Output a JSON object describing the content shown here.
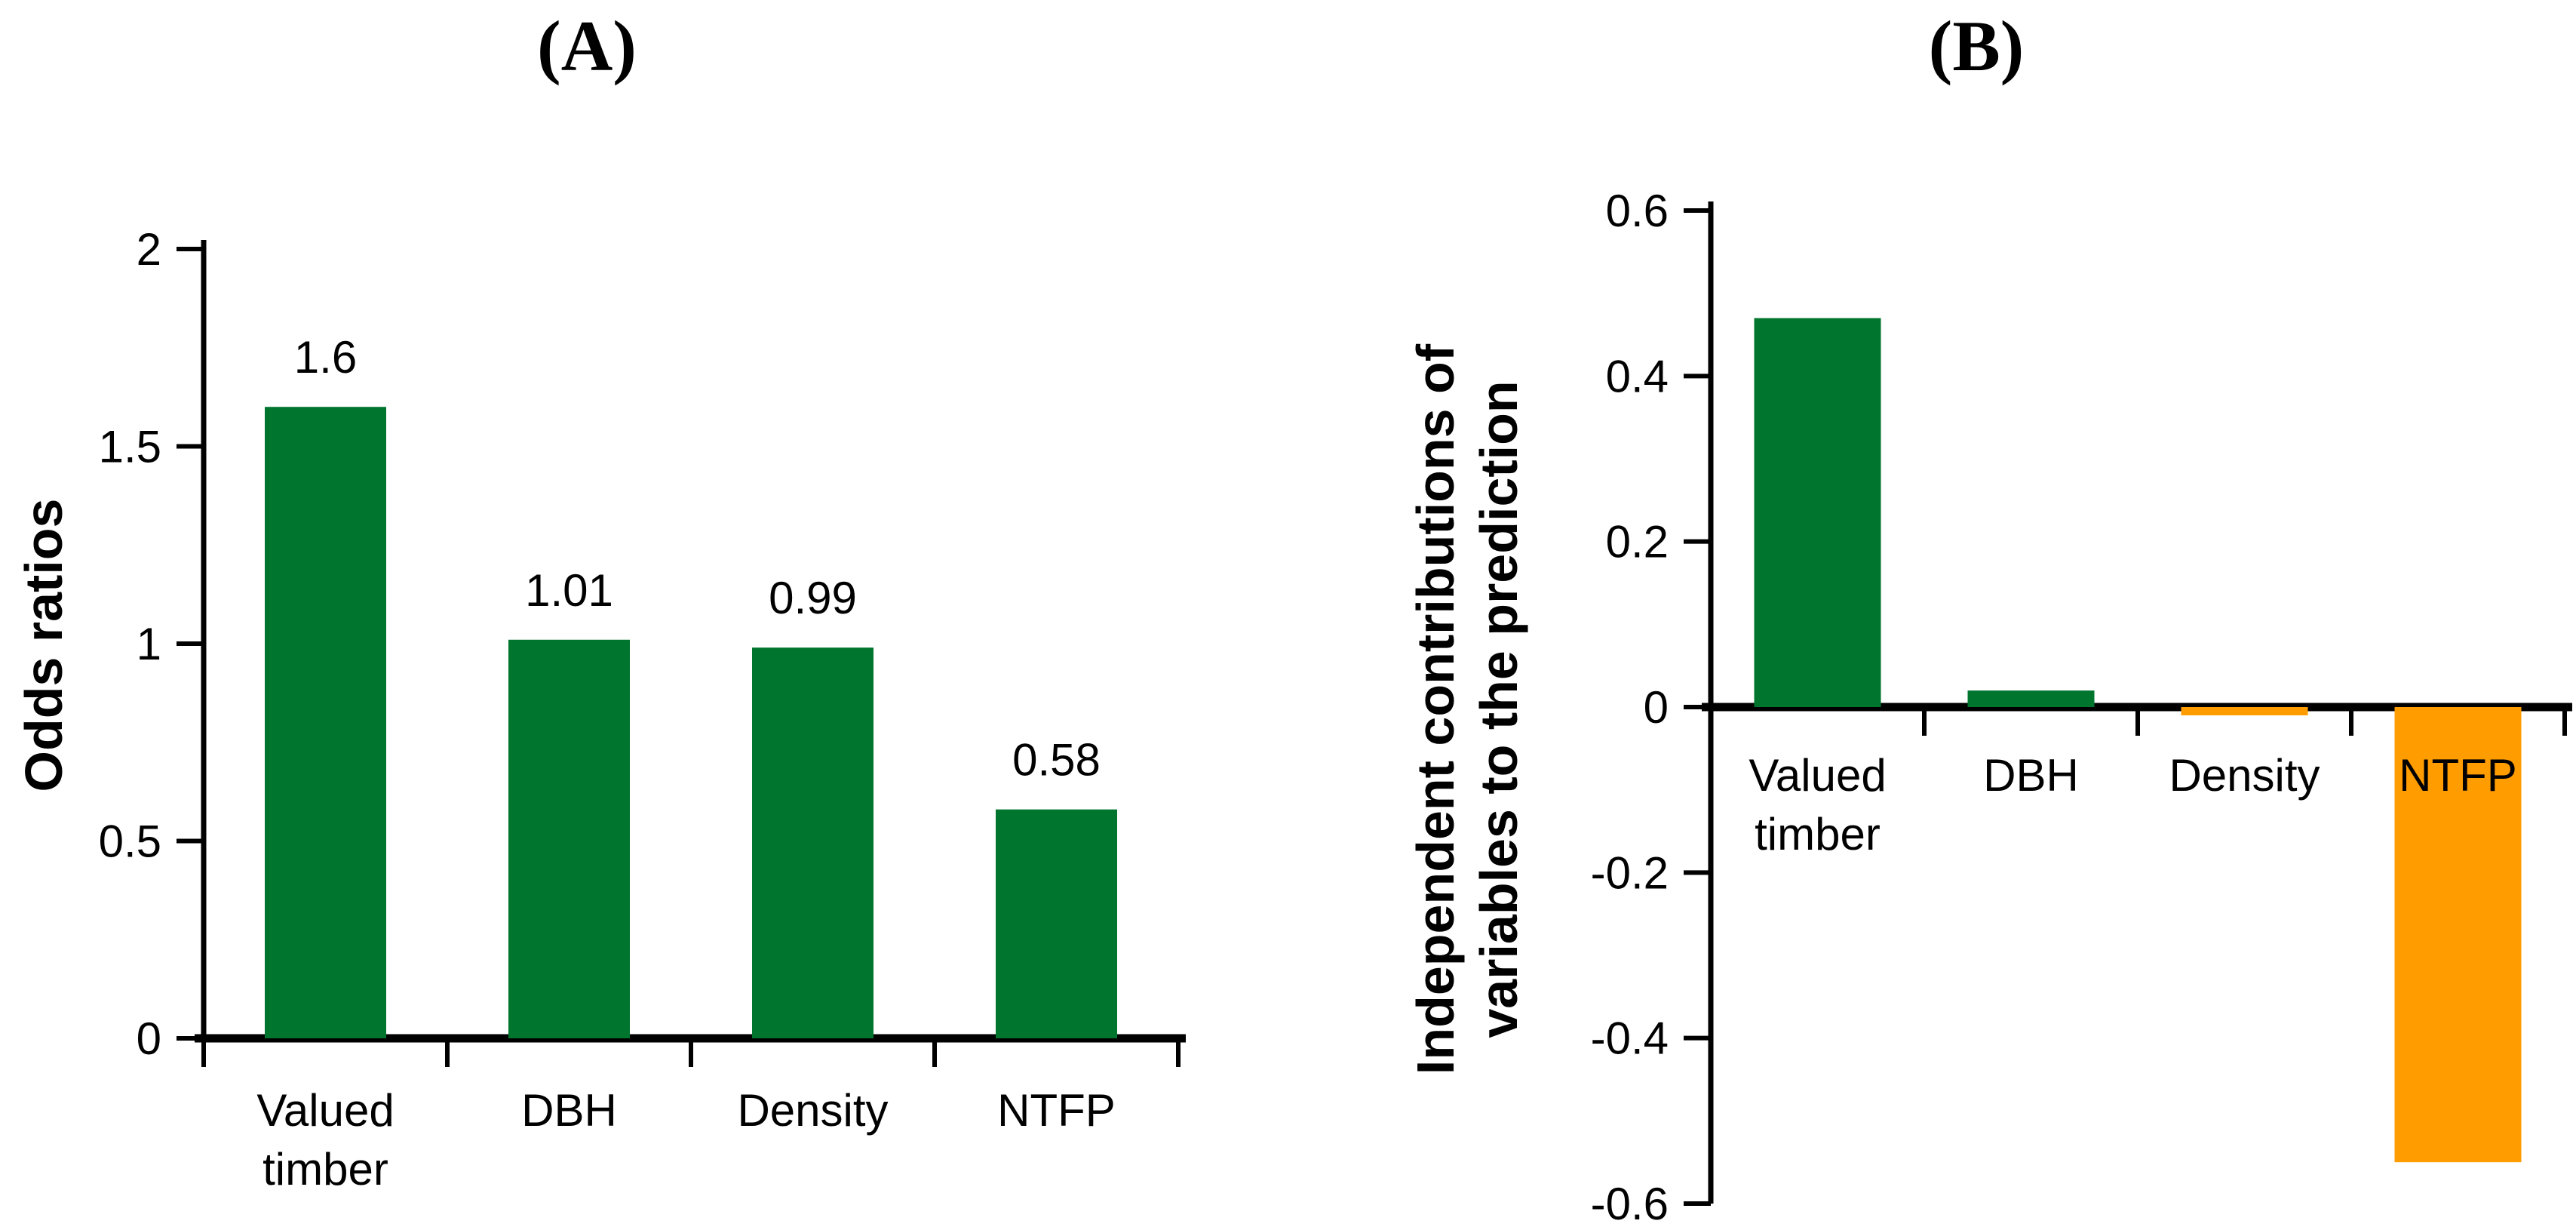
{
  "figure": {
    "background": "#ffffff"
  },
  "colors": {
    "green": "#00752E",
    "orange": "#FF9C00",
    "axis": "#000000",
    "text": "#000000"
  },
  "chart_data": [
    {
      "panel": "A",
      "type": "bar",
      "title": "(A)",
      "ylabel": "Odds ratios",
      "xlabel": "",
      "categories": [
        "Valued timber",
        "DBH",
        "Density",
        "NTFP"
      ],
      "category_lines": [
        [
          "Valued",
          "timber"
        ],
        [
          "DBH"
        ],
        [
          "Density"
        ],
        [
          "NTFP"
        ]
      ],
      "values": [
        1.6,
        1.01,
        0.99,
        0.58
      ],
      "bar_labels": [
        "1.6",
        "1.01",
        "0.99",
        "0.58"
      ],
      "bar_colors": [
        "#00752E",
        "#00752E",
        "#00752E",
        "#00752E"
      ],
      "ylim": [
        0,
        2
      ],
      "yticks": [
        2,
        1.5,
        1,
        0.5,
        0
      ],
      "ytick_labels": [
        "2",
        "1.5",
        "1",
        "0.5",
        "0"
      ],
      "grid": false,
      "legend": null
    },
    {
      "panel": "B",
      "type": "bar",
      "title": "(B)",
      "ylabel": "Independent contributions of variables to the prediction",
      "ylabel_lines": [
        "Independent contributions of",
        "variables to the prediction"
      ],
      "xlabel": "",
      "categories": [
        "Valued timber",
        "DBH",
        "Density",
        "NTFP"
      ],
      "category_lines": [
        [
          "Valued",
          "timber"
        ],
        [
          "DBH"
        ],
        [
          "Density"
        ],
        [
          "NTFP"
        ]
      ],
      "values": [
        0.47,
        0.02,
        -0.01,
        -0.55
      ],
      "bar_labels": null,
      "bar_colors": [
        "#00752E",
        "#00752E",
        "#FF9C00",
        "#FF9C00"
      ],
      "ylim": [
        -0.6,
        0.6
      ],
      "yticks": [
        0.6,
        0.4,
        0.2,
        0,
        -0.2,
        -0.4,
        -0.6
      ],
      "ytick_labels": [
        "0.6",
        "0.4",
        "0.2",
        "0",
        "-0.2",
        "-0.4",
        "-0.6"
      ],
      "grid": false,
      "legend": null
    }
  ]
}
